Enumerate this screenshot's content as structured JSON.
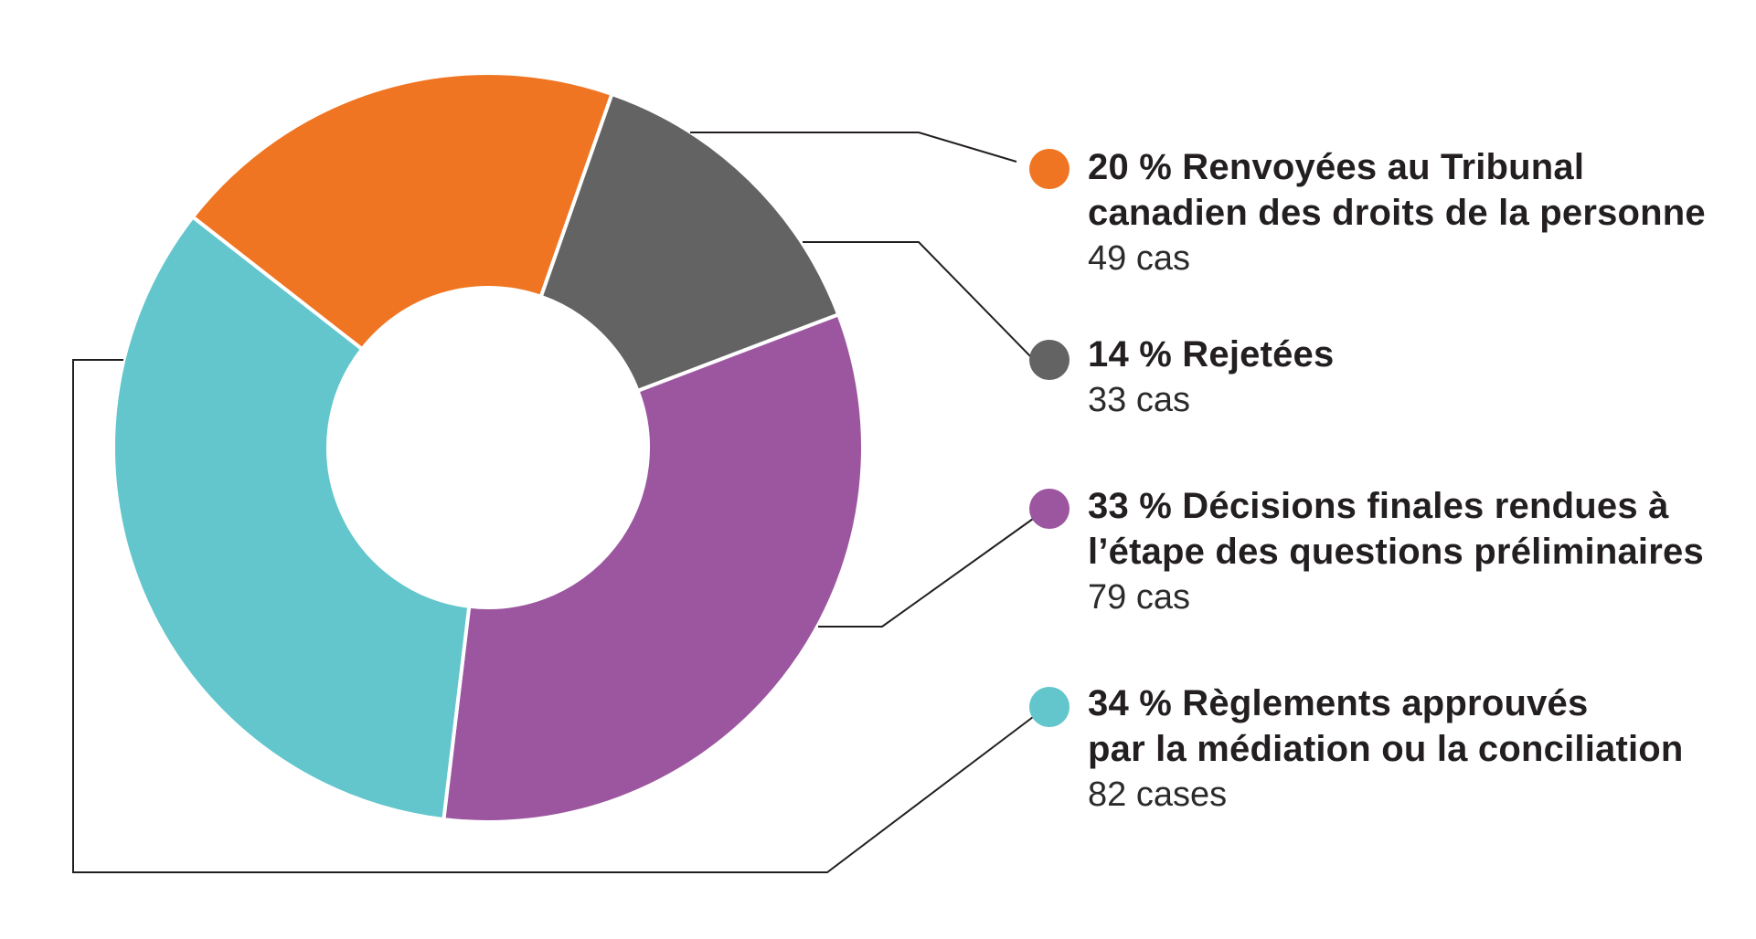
{
  "chart_data": {
    "type": "pie",
    "donut": true,
    "slices": [
      {
        "label": "20 % Renvoyées au Tribunal canadien des droits de la personne",
        "pct": 20,
        "cases": 49,
        "count_text": "49 cas",
        "title_lines": [
          "20 % Renvoyées au Tribunal",
          "canadien des droits de la personne"
        ],
        "color": "#f07522"
      },
      {
        "label": "14 % Rejetées",
        "pct": 14,
        "cases": 33,
        "count_text": "33 cas",
        "title_lines": [
          "14 % Rejetées"
        ],
        "color": "#636363"
      },
      {
        "label": "33 % Décisions finales rendues à l’étape des questions préliminaires",
        "pct": 33,
        "cases": 79,
        "count_text": "79 cas",
        "title_lines": [
          "33 % Décisions finales rendues à",
          "l’étape des questions préliminaires"
        ],
        "color": "#9c56a0"
      },
      {
        "label": "34 % Règlements approuvés par la médiation ou la conciliation",
        "pct": 34,
        "cases": 82,
        "count_text": "82 cases",
        "title_lines": [
          "34 % Règlements approuvés",
          "par la médiation ou la conciliation"
        ],
        "color": "#62c6cc"
      }
    ],
    "legend_position": "right"
  }
}
